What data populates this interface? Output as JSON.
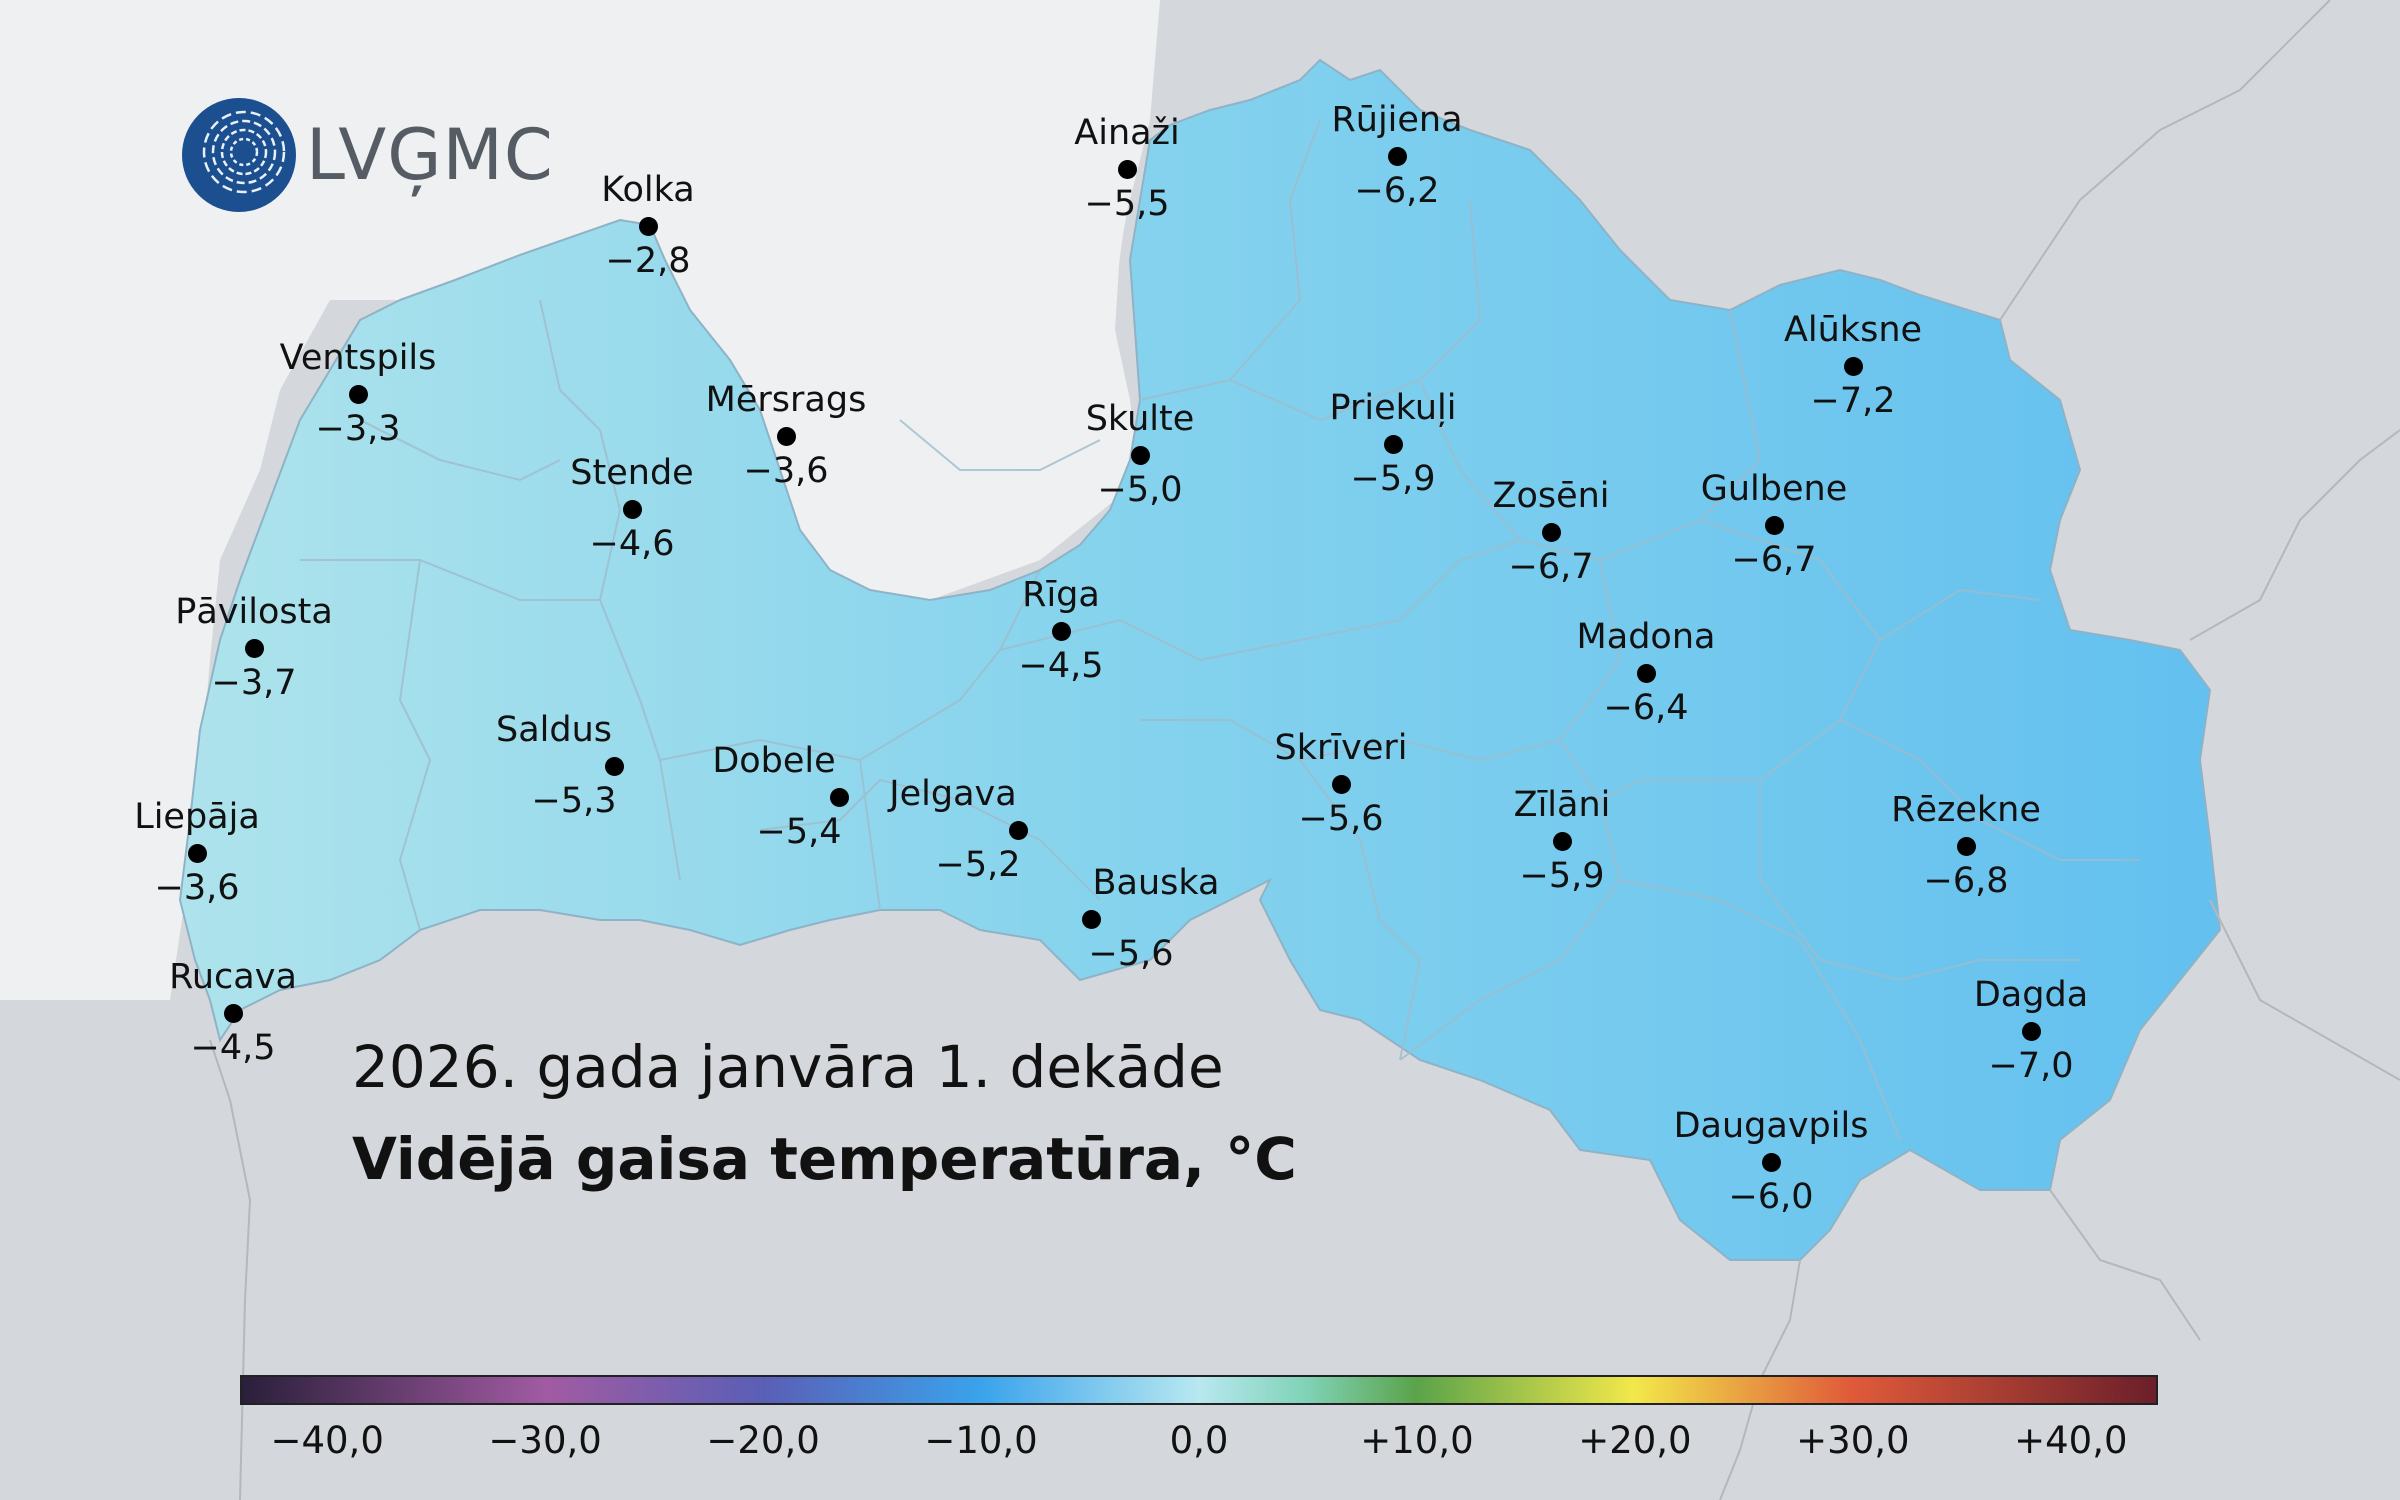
{
  "logo": {
    "text": "LVĢMC"
  },
  "map": {
    "subtitle": "2026. gada janvāra 1. dekāde",
    "title": "Vidējā gaisa temperatūra, °C"
  },
  "legend": {
    "min": -44,
    "max": 44,
    "ticks": [
      "−40,0",
      "−30,0",
      "−20,0",
      "−10,0",
      "0,0",
      "+10,0",
      "+20,0",
      "+30,0",
      "+40,0"
    ],
    "tick_values": [
      -40,
      -30,
      -20,
      -10,
      0,
      10,
      20,
      30,
      40
    ],
    "gradient_stops": [
      {
        "value": -44,
        "color": "#2a1f3a"
      },
      {
        "value": -30,
        "color": "#a15ba2"
      },
      {
        "value": -20,
        "color": "#5a5fb6"
      },
      {
        "value": -10,
        "color": "#3aa3ec"
      },
      {
        "value": 0,
        "color": "#b8e8f0"
      },
      {
        "value": 5,
        "color": "#7fd2b6"
      },
      {
        "value": 10,
        "color": "#5ba34a"
      },
      {
        "value": 20,
        "color": "#f2e84a"
      },
      {
        "value": 30,
        "color": "#e05a3a"
      },
      {
        "value": 44,
        "color": "#6b1f2a"
      }
    ]
  },
  "colors": {
    "background": "#d4d7db",
    "sea": "#eef0f2",
    "land_west": "#a9e2ec",
    "land_east": "#6cc6ef",
    "borders": "#9fb6c4",
    "dot": "#000000"
  },
  "stations": [
    {
      "name": "Kolka",
      "value": "−2,8"
    },
    {
      "name": "Ainaži",
      "value": "−5,5"
    },
    {
      "name": "Rūjiena",
      "value": "−6,2"
    },
    {
      "name": "Ventspils",
      "value": "−3,3"
    },
    {
      "name": "Mērsrags",
      "value": "−3,6"
    },
    {
      "name": "Stende",
      "value": "−4,6"
    },
    {
      "name": "Skulte",
      "value": "−5,0"
    },
    {
      "name": "Priekuļi",
      "value": "−5,9"
    },
    {
      "name": "Alūksne",
      "value": "−7,2"
    },
    {
      "name": "Zosēni",
      "value": "−6,7"
    },
    {
      "name": "Gulbene",
      "value": "−6,7"
    },
    {
      "name": "Pāvilosta",
      "value": "−3,7"
    },
    {
      "name": "Rīga",
      "value": "−4,5"
    },
    {
      "name": "Madona",
      "value": "−6,4"
    },
    {
      "name": "Saldus",
      "value": "−5,3"
    },
    {
      "name": "Dobele",
      "value": "−5,4"
    },
    {
      "name": "Jelgava",
      "value": "−5,2"
    },
    {
      "name": "Skrīveri",
      "value": "−5,6"
    },
    {
      "name": "Zīlāni",
      "value": "−5,9"
    },
    {
      "name": "Rēzekne",
      "value": "−6,8"
    },
    {
      "name": "Liepāja",
      "value": "−3,6"
    },
    {
      "name": "Bauska",
      "value": "−5,6"
    },
    {
      "name": "Rucava",
      "value": "−4,5"
    },
    {
      "name": "Dagda",
      "value": "−7,0"
    },
    {
      "name": "Daugavpils",
      "value": "−6,0"
    }
  ]
}
